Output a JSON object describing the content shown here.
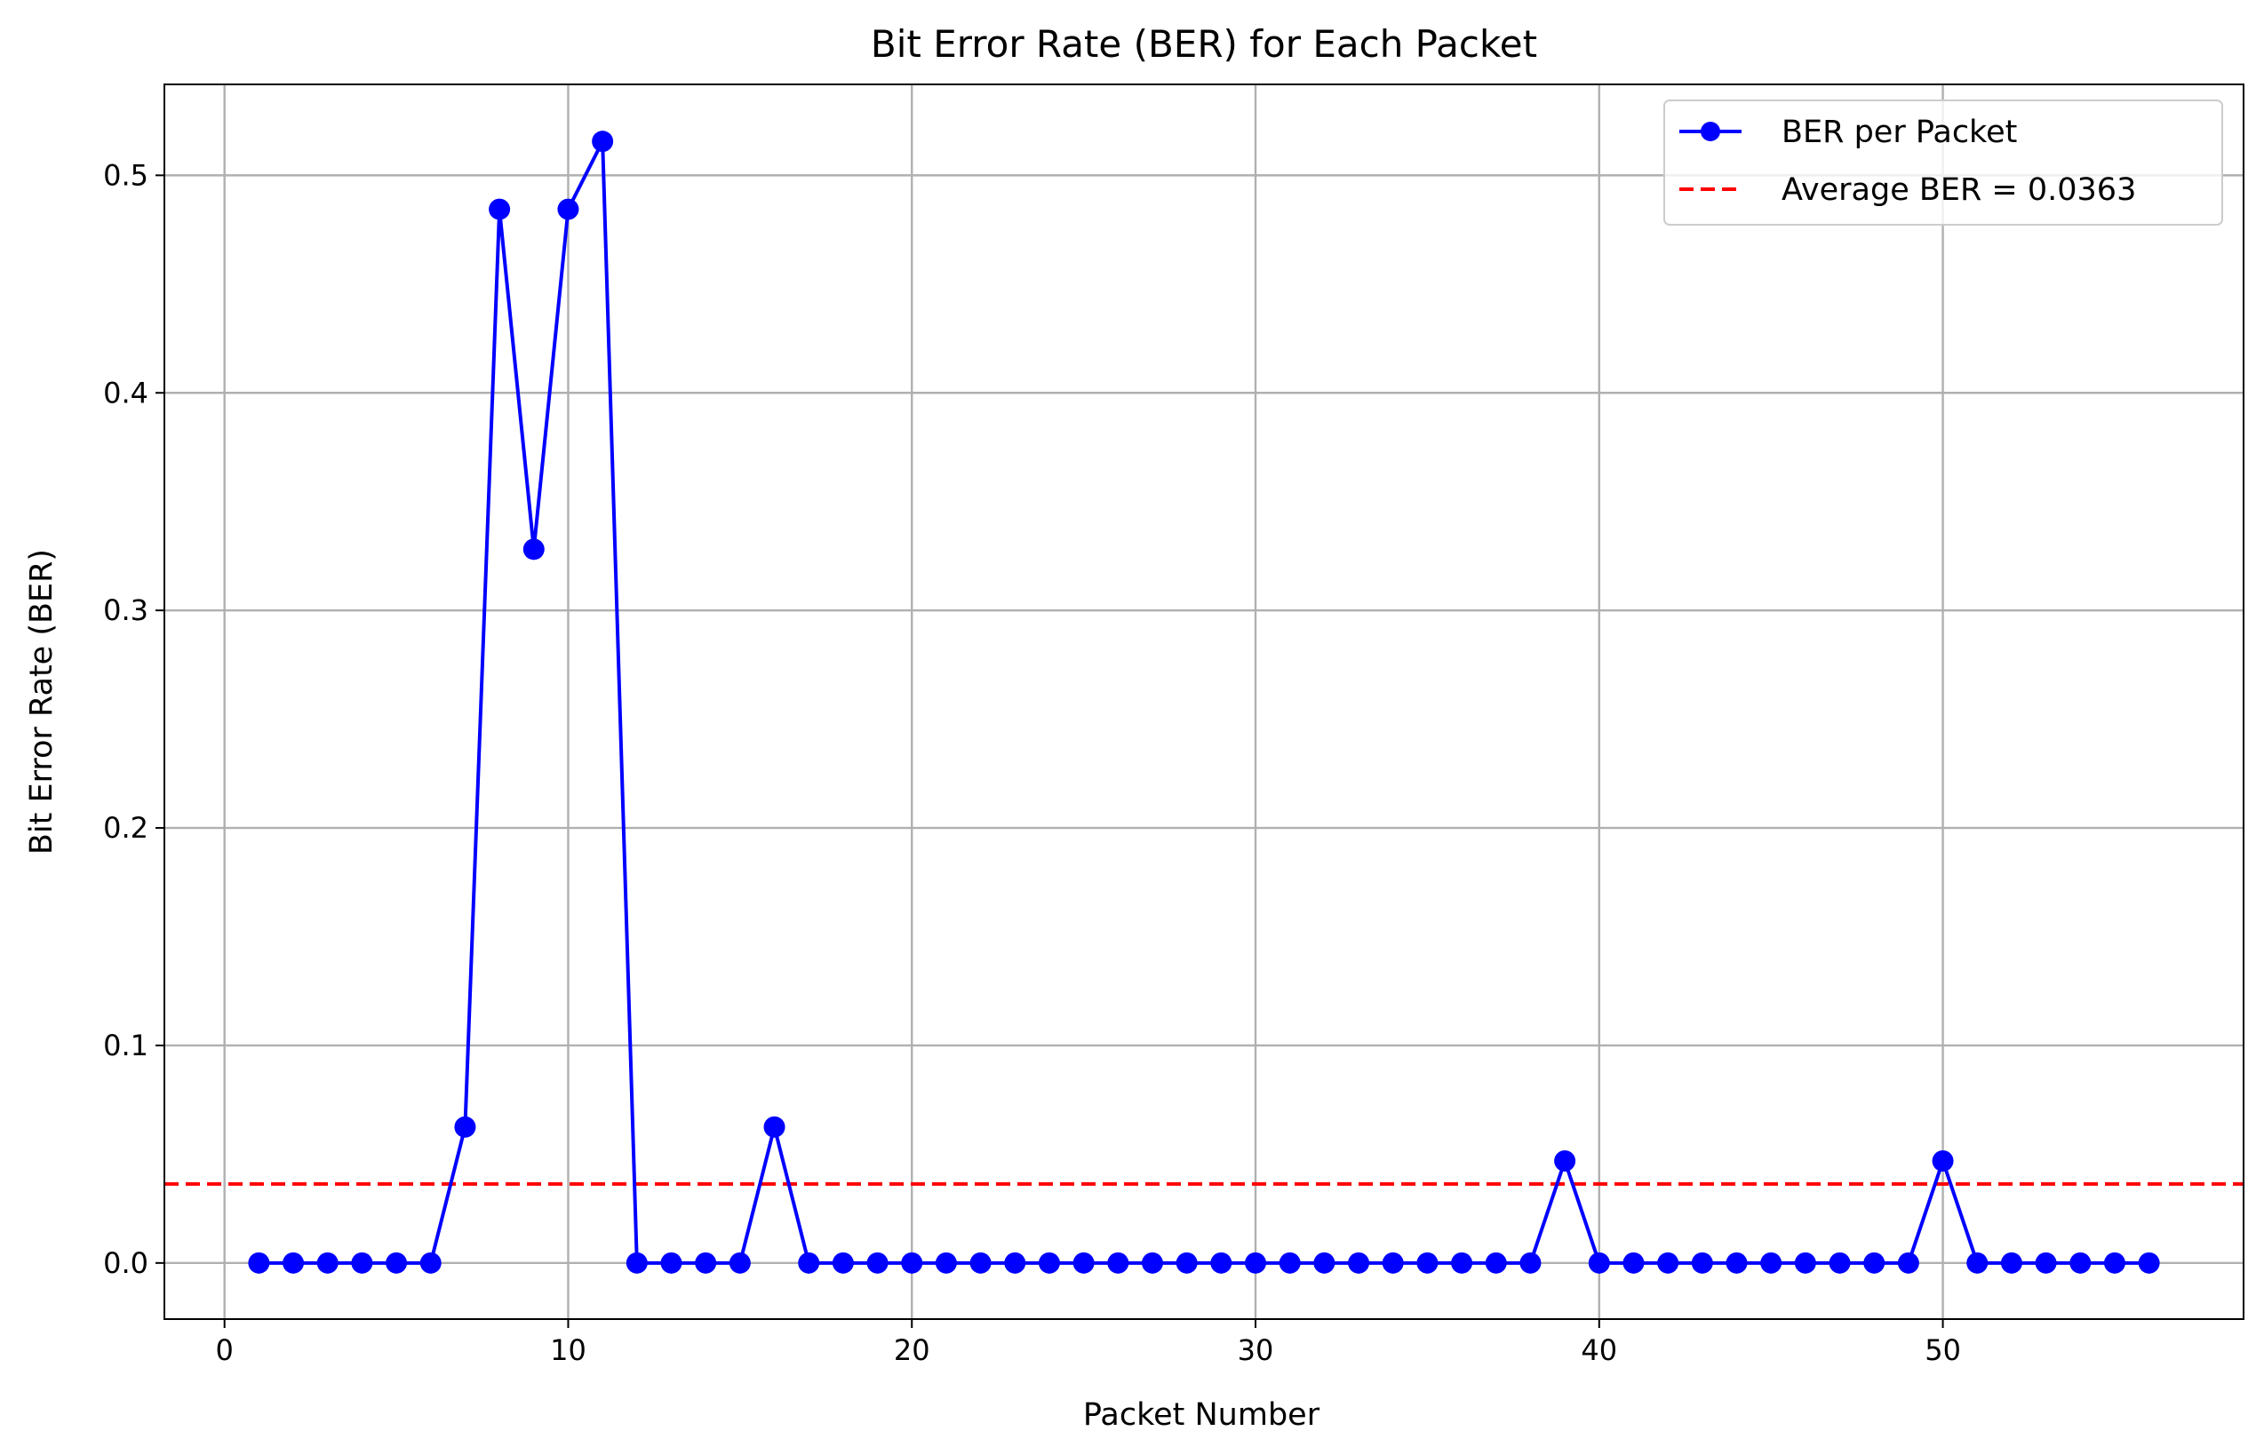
{
  "chart_data": {
    "type": "line",
    "title": "Bit Error Rate (BER) for Each Packet",
    "xlabel": "Packet Number",
    "ylabel": "Bit Error Rate (BER)",
    "xlim": [
      -1.75,
      58.75
    ],
    "ylim": [
      -0.0258,
      0.5418
    ],
    "xticks": [
      0,
      10,
      20,
      30,
      40,
      50
    ],
    "xtick_labels": [
      "0",
      "10",
      "20",
      "30",
      "40",
      "50"
    ],
    "yticks": [
      0.0,
      0.1,
      0.2,
      0.3,
      0.4,
      0.5
    ],
    "ytick_labels": [
      "0.0",
      "0.1",
      "0.2",
      "0.3",
      "0.4",
      "0.5"
    ],
    "grid": true,
    "legend_position": "top-right",
    "x": [
      1,
      2,
      3,
      4,
      5,
      6,
      7,
      8,
      9,
      10,
      11,
      12,
      13,
      14,
      15,
      16,
      17,
      18,
      19,
      20,
      21,
      22,
      23,
      24,
      25,
      26,
      27,
      28,
      29,
      30,
      31,
      32,
      33,
      34,
      35,
      36,
      37,
      38,
      39,
      40,
      41,
      42,
      43,
      44,
      45,
      46,
      47,
      48,
      49,
      50,
      51,
      52,
      53,
      54,
      55,
      56
    ],
    "series": [
      {
        "name": "BER per Packet",
        "color": "#0000ff",
        "marker": "circle",
        "values": [
          0,
          0,
          0,
          0,
          0,
          0,
          0.0625,
          0.4844,
          0.3281,
          0.4844,
          0.5156,
          0,
          0,
          0,
          0,
          0.0625,
          0,
          0,
          0,
          0,
          0,
          0,
          0,
          0,
          0,
          0,
          0,
          0,
          0,
          0,
          0,
          0,
          0,
          0,
          0,
          0,
          0,
          0,
          0.0469,
          0,
          0,
          0,
          0,
          0,
          0,
          0,
          0,
          0,
          0,
          0.0469,
          0,
          0,
          0,
          0,
          0,
          0
        ]
      }
    ],
    "reference_lines": [
      {
        "name": "Average BER = 0.0363",
        "value": 0.0363,
        "color": "#ff0000",
        "style": "dashed"
      }
    ]
  }
}
